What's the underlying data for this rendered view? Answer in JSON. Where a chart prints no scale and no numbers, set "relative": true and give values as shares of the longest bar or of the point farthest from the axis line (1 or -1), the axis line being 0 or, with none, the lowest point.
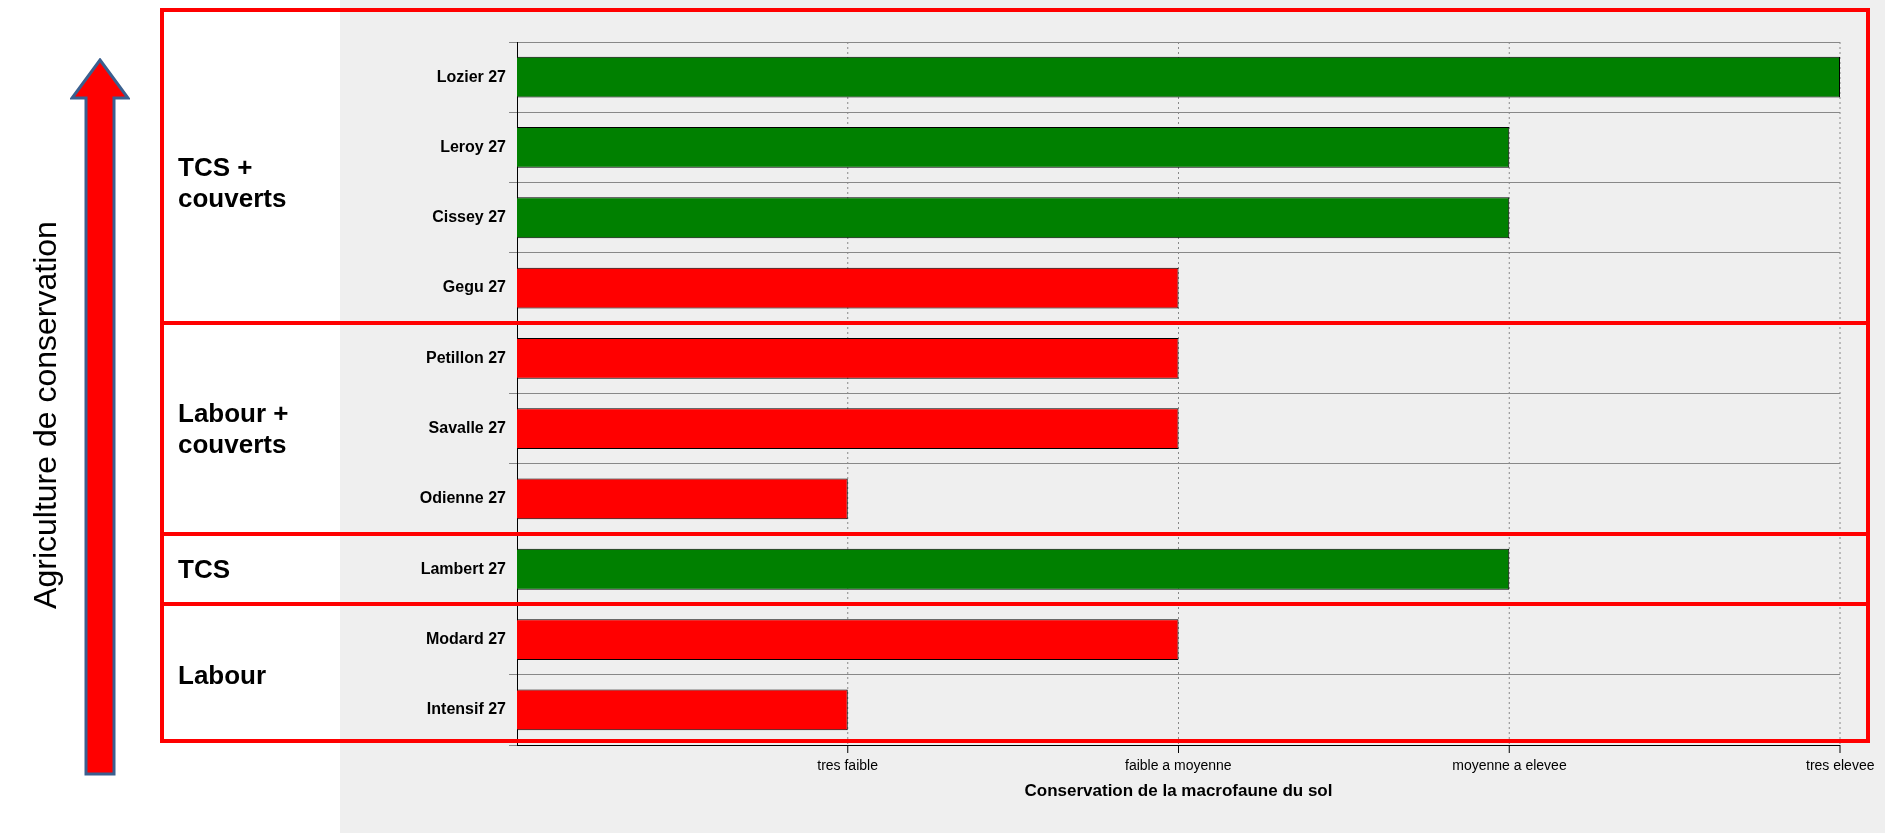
{
  "chart_data": {
    "type": "bar",
    "orientation": "horizontal",
    "relative": true,
    "xlabel": "Conservation de la macrofaune du sol",
    "categories": [
      "Lozier 27",
      "Leroy 27",
      "Cissey 27",
      "Gegu 27",
      "Petillon 27",
      "Savalle 27",
      "Odienne 27",
      "Lambert 27",
      "Modard 27",
      "Intensif 27"
    ],
    "values": [
      1,
      0.75,
      0.75,
      0.5,
      0.5,
      0.5,
      0.25,
      0.75,
      0.5,
      0.25
    ],
    "colors": [
      "#008000",
      "#008000",
      "#008000",
      "#ff0000",
      "#ff0000",
      "#ff0000",
      "#ff0000",
      "#008000",
      "#ff0000",
      "#ff0000"
    ],
    "grid": true,
    "legend": false,
    "annotations": [
      "Agriculture de conservation",
      "TCS + couverts",
      "Labour + couverts",
      "TCS",
      "Labour",
      "tres faible",
      "faible a moyenne",
      "moyenne a elevee",
      "tres elevee"
    ]
  }
}
